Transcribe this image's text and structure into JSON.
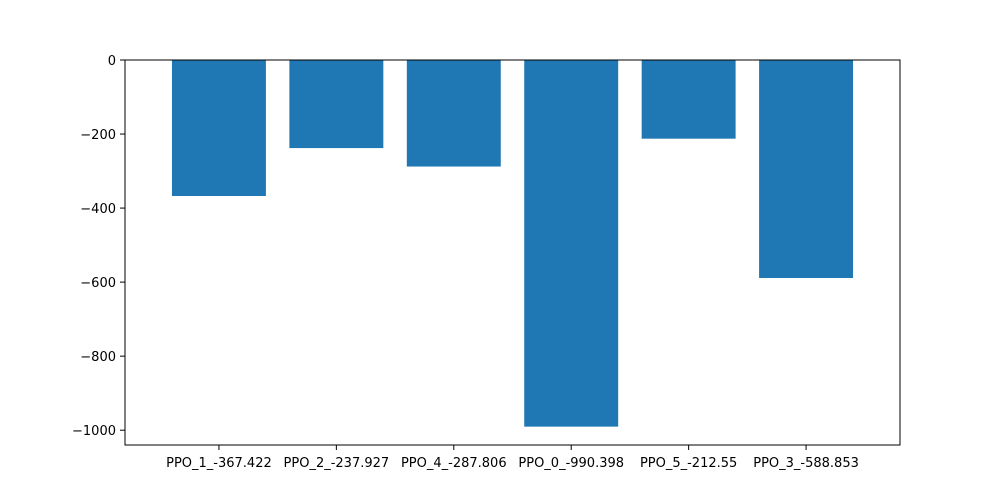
{
  "chart_data": {
    "type": "bar",
    "categories": [
      "PPO_1_-367.422",
      "PPO_2_-237.927",
      "PPO_4_-287.806",
      "PPO_0_-990.398",
      "PPO_5_-212.55",
      "PPO_3_-588.853"
    ],
    "values": [
      -367.422,
      -237.927,
      -287.806,
      -990.398,
      -212.55,
      -588.853
    ],
    "title": "",
    "xlabel": "",
    "ylabel": "",
    "ylim": [
      -1040,
      0
    ],
    "yticks": [
      0,
      -200,
      -400,
      -600,
      -800,
      -1000
    ],
    "ytick_labels": [
      "0",
      "−200",
      "−400",
      "−600",
      "−800",
      "−1000"
    ],
    "grid": false,
    "bar_color": "#1f77b4",
    "axis_color": "#000000"
  }
}
